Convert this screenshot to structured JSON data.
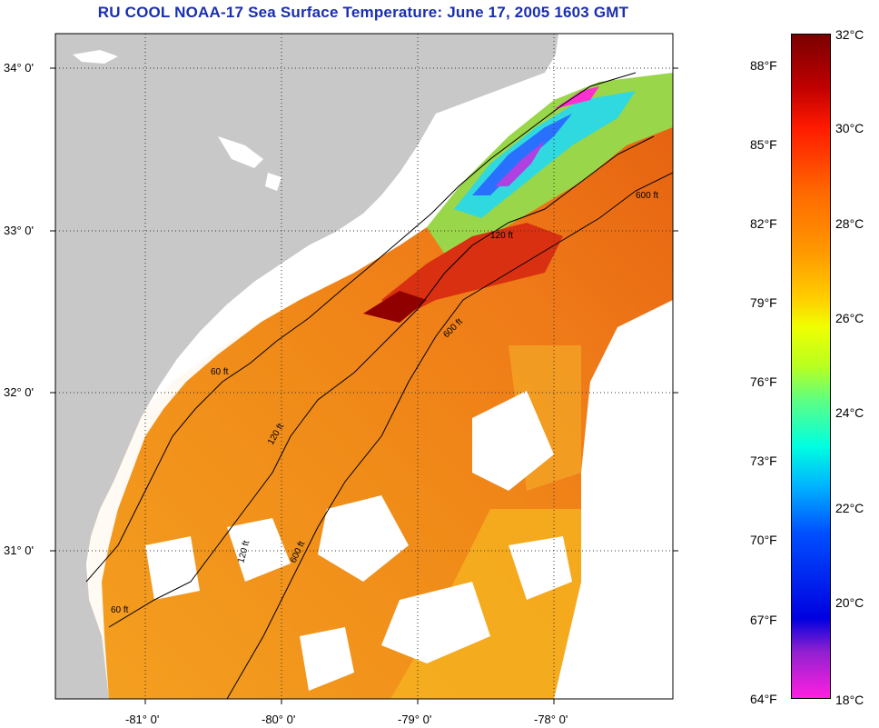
{
  "title": "RU COOL  NOAA-17  Sea Surface Temperature:  June 17, 2005 1603 GMT",
  "axes": {
    "lat_ticks": [
      "34° 0'",
      "33° 0'",
      "32° 0'",
      "31° 0'"
    ],
    "lon_ticks": [
      "-81° 0'",
      "-80° 0'",
      "-79° 0'",
      "-78° 0'"
    ]
  },
  "isobaths": [
    "60 ft",
    "120 ft",
    "600 ft"
  ],
  "colorbar": {
    "fahrenheit": [
      "88°F",
      "85°F",
      "82°F",
      "79°F",
      "76°F",
      "73°F",
      "70°F",
      "67°F",
      "64°F"
    ],
    "celsius": [
      "32°C",
      "30°C",
      "28°C",
      "26°C",
      "24°C",
      "22°C",
      "20°C",
      "18°C"
    ]
  },
  "colors": {
    "land": "#c8c8c8",
    "cloud": "#ffffff",
    "title": "#1a2fb0",
    "warm_sst": "#f08a18"
  }
}
